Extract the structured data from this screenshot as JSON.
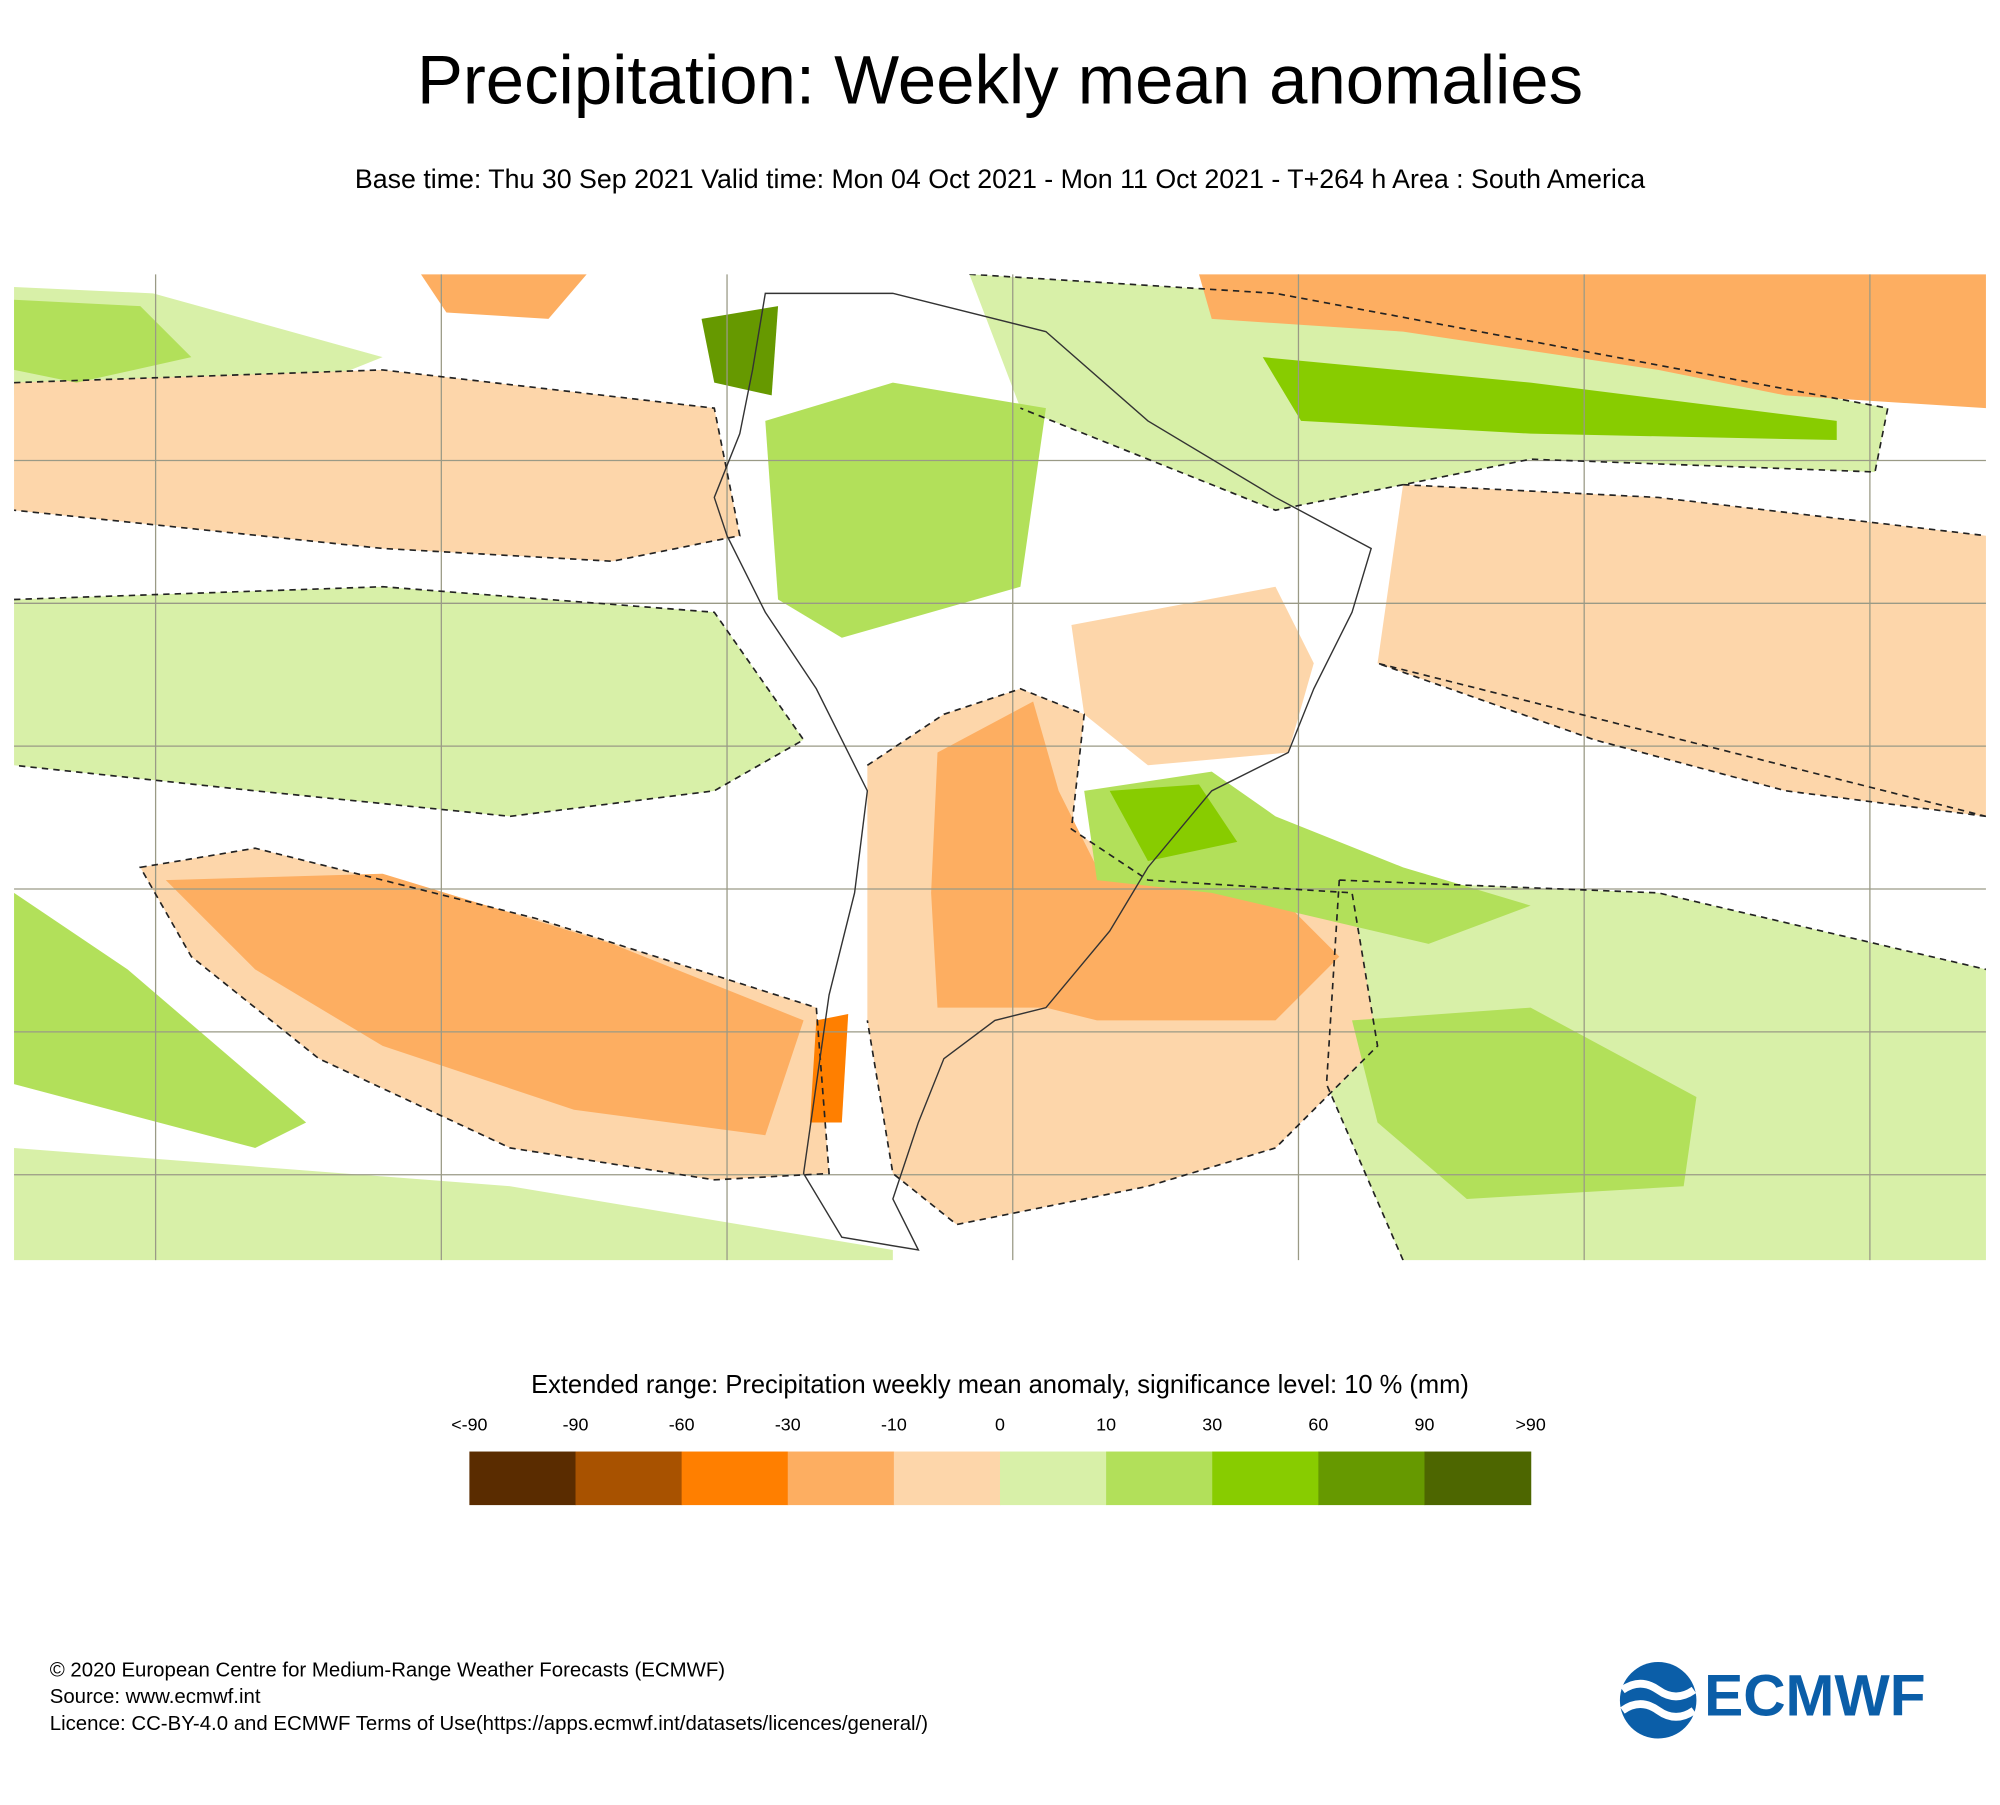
{
  "header": {
    "title": "Precipitation: Weekly mean anomalies",
    "subtitle": "Base time: Thu 30 Sep 2021 Valid time: Mon 04 Oct 2021 - Mon 11 Oct 2021 - T+264 h Area : South America"
  },
  "legend": {
    "title": "Extended range: Precipitation weekly mean anomaly, significance level: 10 % (mm)",
    "labels": [
      "<-90",
      "-90",
      "-60",
      "-30",
      "-10",
      "0",
      "10",
      "30",
      "60",
      "90",
      ">90"
    ],
    "colors": [
      "#5a2c00",
      "#a85200",
      "#ff7f00",
      "#fdae61",
      "#fdd6aa",
      "#d8f0a8",
      "#b2e05a",
      "#88cc00",
      "#669900",
      "#4d6600"
    ]
  },
  "footer": {
    "lines": [
      "© 2020 European Centre for Medium-Range Weather Forecasts (ECMWF)",
      "Source: www.ecmwf.int",
      "Licence: CC-BY-4.0 and ECMWF Terms of Use(https://apps.ecmwf.int/datasets/licences/general/)"
    ]
  },
  "logo": {
    "text": "ECMWF"
  }
}
